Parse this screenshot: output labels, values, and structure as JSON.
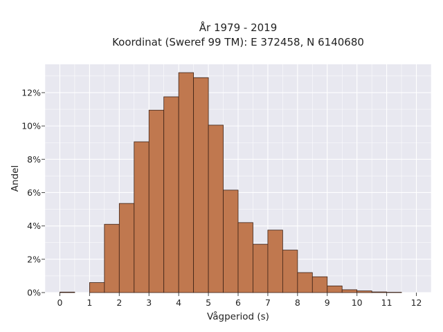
{
  "title_line1": "År 1979 - 2019",
  "title_line2": "Koordinat (Sweref 99 TM): E 372458, N 6140680",
  "chart_data": {
    "type": "bar",
    "xlabel": "Vågperiod (s)",
    "ylabel": "Andel",
    "xlim": [
      -0.5,
      12.5
    ],
    "ylim": [
      0,
      13.7
    ],
    "x_ticks": [
      0,
      1,
      2,
      3,
      4,
      5,
      6,
      7,
      8,
      9,
      10,
      11,
      12
    ],
    "x_tick_labels": [
      "0",
      "1",
      "2",
      "3",
      "4",
      "5",
      "6",
      "7",
      "8",
      "9",
      "10",
      "11",
      "12"
    ],
    "y_ticks": [
      0,
      2,
      4,
      6,
      8,
      10,
      12
    ],
    "y_tick_labels": [
      "0%",
      "2%",
      "4%",
      "6%",
      "8%",
      "10%",
      "12%"
    ],
    "bin_width": 0.5,
    "bins": [
      {
        "start": 0.0,
        "value": 0.03
      },
      {
        "start": 1.0,
        "value": 0.6
      },
      {
        "start": 1.5,
        "value": 4.1
      },
      {
        "start": 2.0,
        "value": 5.35
      },
      {
        "start": 2.5,
        "value": 9.05
      },
      {
        "start": 3.0,
        "value": 10.95
      },
      {
        "start": 3.5,
        "value": 11.75
      },
      {
        "start": 4.0,
        "value": 13.2
      },
      {
        "start": 4.5,
        "value": 12.9
      },
      {
        "start": 5.0,
        "value": 10.05
      },
      {
        "start": 5.5,
        "value": 6.15
      },
      {
        "start": 6.0,
        "value": 4.2
      },
      {
        "start": 6.5,
        "value": 2.9
      },
      {
        "start": 7.0,
        "value": 3.75
      },
      {
        "start": 7.5,
        "value": 2.55
      },
      {
        "start": 8.0,
        "value": 1.2
      },
      {
        "start": 8.5,
        "value": 0.95
      },
      {
        "start": 9.0,
        "value": 0.4
      },
      {
        "start": 9.5,
        "value": 0.17
      },
      {
        "start": 10.0,
        "value": 0.1
      },
      {
        "start": 10.5,
        "value": 0.04
      },
      {
        "start": 11.0,
        "value": 0.02
      }
    ],
    "bar_color": "#c0784f",
    "bar_edge_color": "#3b2116",
    "plot_background": "#e8e8f0",
    "grid": true,
    "grid_color": "#ffffff"
  }
}
